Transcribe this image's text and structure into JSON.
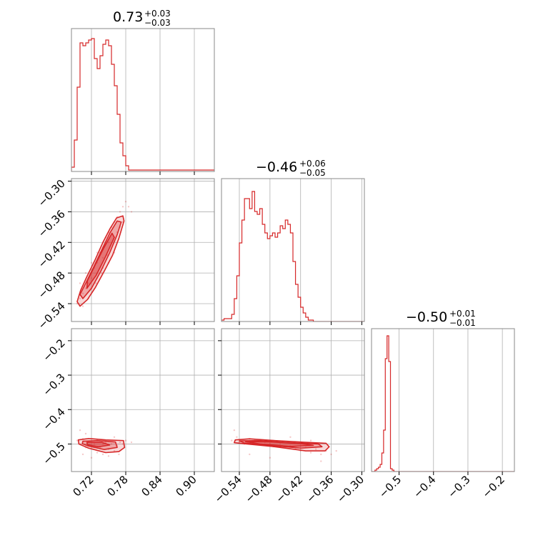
{
  "chart_data": {
    "type": "corner",
    "colors": {
      "series": "#d62728",
      "grid": "#b0b0b0",
      "frame": "#888888"
    },
    "parameters": [
      {
        "title_value": "0.73",
        "title_plus": "+0.03",
        "title_minus": "−0.03",
        "range": [
          0.685,
          0.935
        ]
      },
      {
        "title_value": "−0.46",
        "title_plus": "+0.06",
        "title_minus": "−0.05",
        "range": [
          -0.575,
          -0.295
        ]
      },
      {
        "title_value": "−0.50",
        "title_plus": "+0.01",
        "title_minus": "−0.01",
        "range": [
          -0.58,
          -0.165
        ]
      }
    ],
    "ticks": {
      "p0": {
        "values": [
          0.72,
          0.78,
          0.84,
          0.9
        ],
        "labels": [
          "0.72",
          "0.78",
          "0.84",
          "0.90"
        ]
      },
      "p1": {
        "values": [
          -0.54,
          -0.48,
          -0.42,
          -0.36,
          -0.3
        ],
        "labels": [
          "−0.54",
          "−0.48",
          "−0.42",
          "−0.36",
          "−0.30"
        ]
      },
      "p1_left": {
        "values": [
          -0.3,
          -0.36,
          -0.42,
          -0.48,
          -0.54
        ],
        "labels": [
          "−0.30",
          "−0.36",
          "−0.42",
          "−0.48",
          "−0.54"
        ]
      },
      "p2": {
        "values": [
          -0.5,
          -0.4,
          -0.3,
          -0.2
        ],
        "labels": [
          "−0.5",
          "−0.4",
          "−0.3",
          "−0.2"
        ]
      },
      "p2_left": {
        "values": [
          -0.2,
          -0.3,
          -0.4,
          -0.5
        ],
        "labels": [
          "−0.2",
          "−0.3",
          "−0.4",
          "−0.5"
        ]
      }
    },
    "hist_p0": {
      "edges_start": 0.685,
      "bin_width": 0.005,
      "counts": [
        3,
        22,
        59,
        90,
        88,
        90,
        92,
        93,
        79,
        72,
        81,
        89,
        92,
        88,
        75,
        60,
        40,
        20,
        11,
        4,
        1,
        1,
        1,
        1,
        1,
        1,
        1,
        1,
        1,
        1,
        1,
        1,
        1,
        1,
        1,
        1,
        1,
        1,
        1,
        1,
        1,
        1,
        1,
        1,
        1,
        1,
        1,
        1,
        1,
        1
      ],
      "ymax": 100
    },
    "hist_p1": {
      "edges_start": -0.575,
      "bin_width": 0.005,
      "counts": [
        1,
        2,
        2,
        2,
        5,
        16,
        32,
        55,
        71,
        86,
        86,
        79,
        91,
        77,
        75,
        79,
        68,
        62,
        58,
        60,
        62,
        59,
        62,
        67,
        65,
        71,
        68,
        62,
        42,
        26,
        17,
        10,
        6,
        3,
        1,
        1,
        0,
        0,
        0,
        0,
        0,
        0,
        0,
        0,
        0,
        0,
        0,
        0,
        0,
        0,
        0,
        0,
        0,
        0,
        0,
        0
      ],
      "ymax": 100
    },
    "hist_p2": {
      "edges_start": -0.58,
      "bin_width": 0.005,
      "counts": [
        0,
        0,
        1,
        2,
        3,
        5,
        13,
        29,
        79,
        95,
        77,
        2,
        1,
        0,
        0,
        0,
        0,
        0,
        0,
        0,
        0,
        0,
        0,
        0,
        0,
        0,
        0,
        0,
        0,
        0,
        0,
        0,
        0,
        0,
        0,
        0,
        0,
        0,
        0,
        0,
        0,
        0,
        0,
        0,
        0,
        0,
        0,
        0,
        0,
        0,
        0,
        0,
        0,
        0,
        0,
        0,
        0,
        0,
        0,
        0,
        0,
        0,
        0,
        0,
        0,
        0,
        0,
        0,
        0,
        0,
        0,
        0,
        0,
        0,
        0,
        0,
        0,
        0,
        0,
        0,
        0,
        0,
        0
      ],
      "ymax": 100
    },
    "scatter_p0_p1": [
      [
        0.695,
        -0.54
      ],
      [
        0.7,
        -0.53
      ],
      [
        0.705,
        -0.52
      ],
      [
        0.71,
        -0.51
      ],
      [
        0.715,
        -0.5
      ],
      [
        0.72,
        -0.49
      ],
      [
        0.725,
        -0.47
      ],
      [
        0.73,
        -0.46
      ],
      [
        0.735,
        -0.44
      ],
      [
        0.74,
        -0.43
      ],
      [
        0.745,
        -0.41
      ],
      [
        0.75,
        -0.4
      ],
      [
        0.755,
        -0.39
      ],
      [
        0.76,
        -0.38
      ],
      [
        0.765,
        -0.37
      ],
      [
        0.77,
        -0.36
      ],
      [
        0.775,
        -0.35
      ],
      [
        0.78,
        -0.34
      ],
      [
        0.785,
        -0.35
      ],
      [
        0.79,
        -0.36
      ],
      [
        0.7,
        -0.5
      ],
      [
        0.71,
        -0.48
      ],
      [
        0.72,
        -0.46
      ],
      [
        0.73,
        -0.44
      ],
      [
        0.74,
        -0.45
      ],
      [
        0.75,
        -0.42
      ],
      [
        0.76,
        -0.41
      ],
      [
        0.72,
        -0.51
      ],
      [
        0.73,
        -0.49
      ],
      [
        0.74,
        -0.47
      ],
      [
        0.75,
        -0.46
      ],
      [
        0.76,
        -0.44
      ],
      [
        0.765,
        -0.4
      ],
      [
        0.775,
        -0.38
      ],
      [
        0.77,
        -0.39
      ],
      [
        0.705,
        -0.545
      ],
      [
        0.715,
        -0.53
      ],
      [
        0.728,
        -0.5
      ],
      [
        0.738,
        -0.48
      ],
      [
        0.748,
        -0.445
      ]
    ],
    "scatter_p0_p2": [
      [
        0.695,
        -0.49
      ],
      [
        0.7,
        -0.5
      ],
      [
        0.705,
        -0.485
      ],
      [
        0.71,
        -0.51
      ],
      [
        0.715,
        -0.495
      ],
      [
        0.72,
        -0.505
      ],
      [
        0.725,
        -0.5
      ],
      [
        0.73,
        -0.49
      ],
      [
        0.735,
        -0.51
      ],
      [
        0.74,
        -0.5
      ],
      [
        0.745,
        -0.495
      ],
      [
        0.75,
        -0.515
      ],
      [
        0.755,
        -0.5
      ],
      [
        0.76,
        -0.52
      ],
      [
        0.765,
        -0.505
      ],
      [
        0.77,
        -0.495
      ],
      [
        0.775,
        -0.5
      ],
      [
        0.78,
        -0.49
      ],
      [
        0.7,
        -0.46
      ],
      [
        0.71,
        -0.47
      ],
      [
        0.705,
        -0.53
      ],
      [
        0.72,
        -0.54
      ],
      [
        0.73,
        -0.525
      ],
      [
        0.74,
        -0.53
      ],
      [
        0.75,
        -0.535
      ],
      [
        0.76,
        -0.48
      ],
      [
        0.768,
        -0.53
      ],
      [
        0.79,
        -0.495
      ]
    ],
    "scatter_p1_p2": [
      [
        -0.555,
        -0.49
      ],
      [
        -0.545,
        -0.48
      ],
      [
        -0.54,
        -0.495
      ],
      [
        -0.53,
        -0.5
      ],
      [
        -0.52,
        -0.485
      ],
      [
        -0.51,
        -0.49
      ],
      [
        -0.5,
        -0.5
      ],
      [
        -0.49,
        -0.495
      ],
      [
        -0.48,
        -0.5
      ],
      [
        -0.47,
        -0.505
      ],
      [
        -0.46,
        -0.5
      ],
      [
        -0.45,
        -0.51
      ],
      [
        -0.44,
        -0.505
      ],
      [
        -0.43,
        -0.515
      ],
      [
        -0.42,
        -0.52
      ],
      [
        -0.41,
        -0.51
      ],
      [
        -0.4,
        -0.525
      ],
      [
        -0.39,
        -0.515
      ],
      [
        -0.38,
        -0.53
      ],
      [
        -0.37,
        -0.52
      ],
      [
        -0.36,
        -0.53
      ],
      [
        -0.55,
        -0.46
      ],
      [
        -0.52,
        -0.53
      ],
      [
        -0.48,
        -0.54
      ],
      [
        -0.44,
        -0.48
      ],
      [
        -0.4,
        -0.49
      ],
      [
        -0.38,
        -0.55
      ],
      [
        -0.35,
        -0.52
      ]
    ],
    "contours_p0_p1": [
      [
        [
          0.7,
          -0.545
        ],
        [
          0.713,
          -0.532
        ],
        [
          0.727,
          -0.508
        ],
        [
          0.743,
          -0.475
        ],
        [
          0.757,
          -0.445
        ],
        [
          0.768,
          -0.412
        ],
        [
          0.777,
          -0.378
        ],
        [
          0.775,
          -0.368
        ],
        [
          0.764,
          -0.372
        ],
        [
          0.753,
          -0.392
        ],
        [
          0.74,
          -0.42
        ],
        [
          0.726,
          -0.455
        ],
        [
          0.712,
          -0.487
        ],
        [
          0.701,
          -0.514
        ],
        [
          0.695,
          -0.536
        ]
      ],
      [
        [
          0.705,
          -0.53
        ],
        [
          0.72,
          -0.51
        ],
        [
          0.737,
          -0.475
        ],
        [
          0.752,
          -0.44
        ],
        [
          0.765,
          -0.405
        ],
        [
          0.772,
          -0.38
        ],
        [
          0.765,
          -0.378
        ],
        [
          0.752,
          -0.402
        ],
        [
          0.738,
          -0.435
        ],
        [
          0.724,
          -0.468
        ],
        [
          0.71,
          -0.5
        ],
        [
          0.7,
          -0.522
        ]
      ],
      [
        [
          0.712,
          -0.51
        ],
        [
          0.728,
          -0.485
        ],
        [
          0.745,
          -0.447
        ],
        [
          0.76,
          -0.41
        ],
        [
          0.756,
          -0.402
        ],
        [
          0.742,
          -0.43
        ],
        [
          0.727,
          -0.463
        ],
        [
          0.713,
          -0.495
        ]
      ]
    ],
    "contours_p0_p2": [
      [
        [
          0.697,
          -0.488
        ],
        [
          0.715,
          -0.484
        ],
        [
          0.745,
          -0.488
        ],
        [
          0.776,
          -0.49
        ],
        [
          0.778,
          -0.51
        ],
        [
          0.768,
          -0.522
        ],
        [
          0.745,
          -0.525
        ],
        [
          0.715,
          -0.512
        ],
        [
          0.698,
          -0.5
        ]
      ],
      [
        [
          0.705,
          -0.492
        ],
        [
          0.73,
          -0.49
        ],
        [
          0.762,
          -0.494
        ],
        [
          0.765,
          -0.51
        ],
        [
          0.742,
          -0.516
        ],
        [
          0.715,
          -0.506
        ],
        [
          0.704,
          -0.499
        ]
      ],
      [
        [
          0.712,
          -0.495
        ],
        [
          0.738,
          -0.495
        ],
        [
          0.752,
          -0.503
        ],
        [
          0.732,
          -0.508
        ],
        [
          0.713,
          -0.502
        ]
      ]
    ],
    "contours_p1_p2": [
      [
        [
          -0.548,
          -0.488
        ],
        [
          -0.52,
          -0.485
        ],
        [
          -0.47,
          -0.49
        ],
        [
          -0.41,
          -0.495
        ],
        [
          -0.37,
          -0.498
        ],
        [
          -0.364,
          -0.508
        ],
        [
          -0.372,
          -0.52
        ],
        [
          -0.41,
          -0.52
        ],
        [
          -0.47,
          -0.508
        ],
        [
          -0.525,
          -0.5
        ],
        [
          -0.55,
          -0.496
        ]
      ],
      [
        [
          -0.54,
          -0.491
        ],
        [
          -0.5,
          -0.49
        ],
        [
          -0.44,
          -0.496
        ],
        [
          -0.385,
          -0.5
        ],
        [
          -0.378,
          -0.508
        ],
        [
          -0.42,
          -0.512
        ],
        [
          -0.48,
          -0.504
        ],
        [
          -0.53,
          -0.497
        ]
      ],
      [
        [
          -0.528,
          -0.493
        ],
        [
          -0.48,
          -0.494
        ],
        [
          -0.42,
          -0.499
        ],
        [
          -0.395,
          -0.504
        ],
        [
          -0.44,
          -0.507
        ],
        [
          -0.5,
          -0.5
        ]
      ]
    ]
  }
}
